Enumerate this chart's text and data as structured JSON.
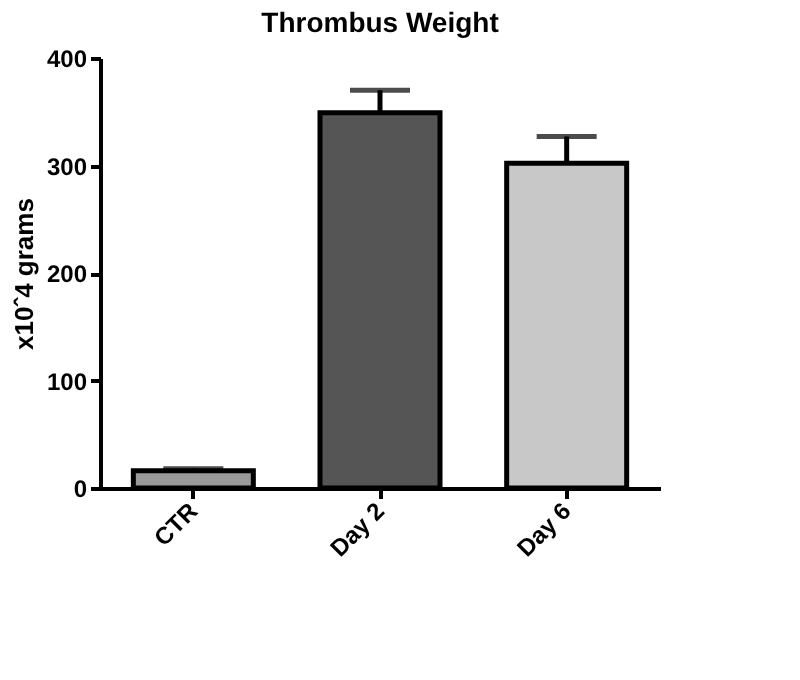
{
  "chart_data": {
    "type": "bar",
    "title": "Thrombus Weight",
    "ylabel": "x10ˆ4 grams",
    "categories": [
      "CTR",
      "Day 2",
      "Day 6"
    ],
    "values": [
      16,
      349,
      302
    ],
    "colors": [
      "#9a9a9a",
      "#555555",
      "#c8c8c8"
    ],
    "errors": [
      [
        16,
        18
      ],
      [
        349,
        370
      ],
      [
        302,
        327
      ]
    ],
    "ylim": [
      0,
      400
    ],
    "yticks": [
      0,
      100,
      200,
      300,
      400
    ],
    "grid": false
  }
}
